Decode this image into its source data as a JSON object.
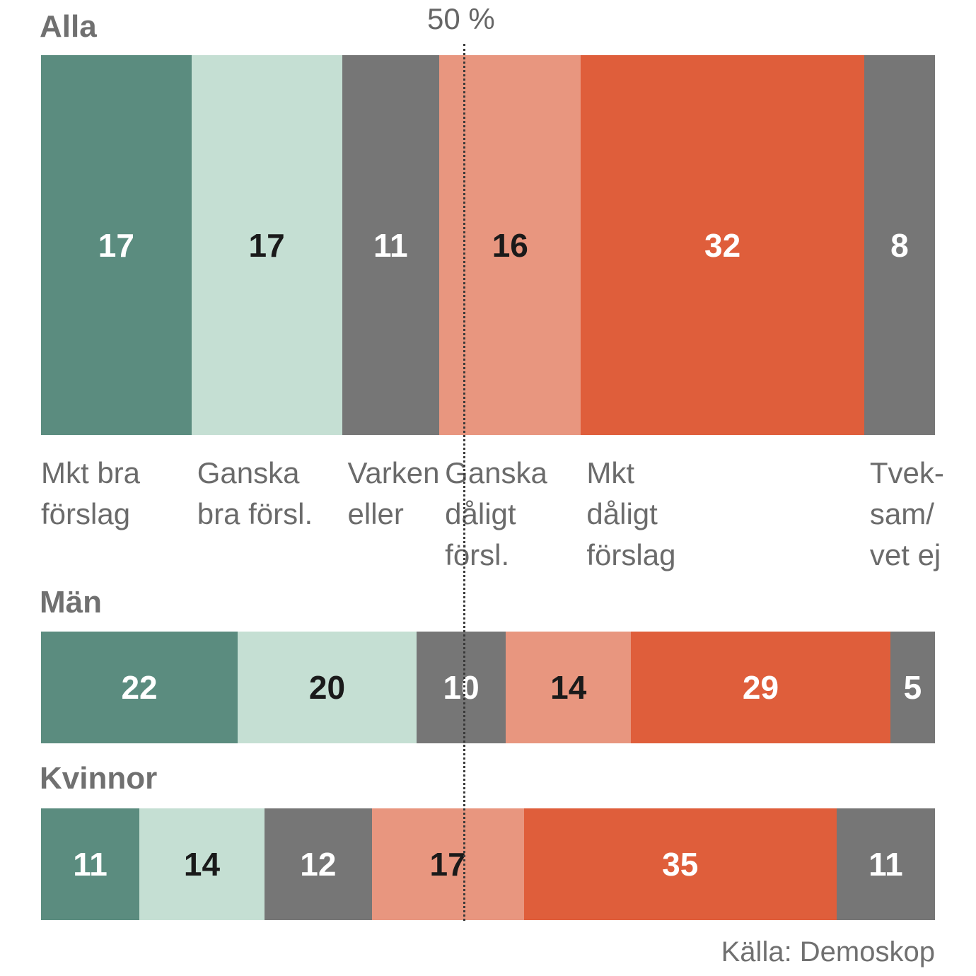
{
  "chart_data": {
    "type": "bar",
    "stacked": "100%",
    "categories": [
      "Mkt bra förslag",
      "Ganska bra försl.",
      "Varken eller",
      "Ganska dåligt försl.",
      "Mkt dåligt förslag",
      "Tveksam/ vet ej"
    ],
    "category_label_lines": [
      [
        "Mkt bra",
        "förslag"
      ],
      [
        "Ganska",
        "bra försl."
      ],
      [
        "Varken",
        "eller"
      ],
      [
        "Ganska",
        "dåligt",
        "försl."
      ],
      [
        "Mkt",
        "dåligt",
        "förslag"
      ],
      [
        "Tvek-",
        "sam/",
        "vet ej"
      ]
    ],
    "colors": [
      "#5b8c7f",
      "#c5dfd3",
      "#767676",
      "#e8967f",
      "#df5e3b",
      "#767676"
    ],
    "value_label_colors": [
      "#ffffff",
      "#1a1a1a",
      "#ffffff",
      "#1a1a1a",
      "#ffffff",
      "#ffffff"
    ],
    "series": [
      {
        "name": "Alla",
        "values": [
          17,
          17,
          11,
          16,
          32,
          8
        ]
      },
      {
        "name": "Män",
        "values": [
          22,
          20,
          10,
          14,
          29,
          5
        ]
      },
      {
        "name": "Kvinnor",
        "values": [
          11,
          14,
          12,
          17,
          35,
          11
        ]
      }
    ],
    "reference_line": {
      "value": 50,
      "label": "50 %"
    },
    "source": "Källa: Demoskop"
  }
}
